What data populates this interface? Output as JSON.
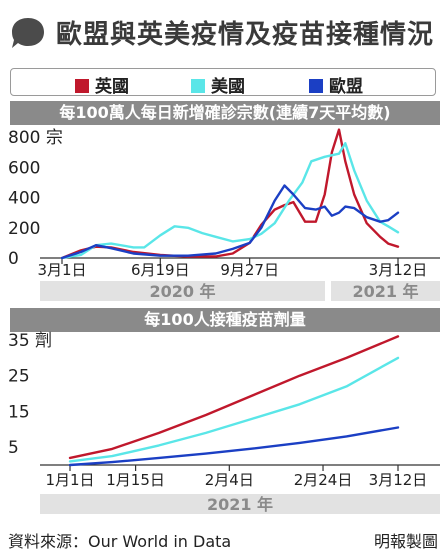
{
  "title": "歐盟與英美疫情及疫苗接種情況",
  "legend": [
    {
      "label": "英國",
      "color": "#c0182c"
    },
    {
      "label": "美國",
      "color": "#5ae6e8"
    },
    {
      "label": "歐盟",
      "color": "#1b3fc4"
    }
  ],
  "source": "資料來源：Our World in Data",
  "credit": "明報製圖",
  "chart_data": [
    {
      "type": "line",
      "title": "每100萬人每日新增確診宗數(連續7天平均數)",
      "y_unit": "宗",
      "ylim": [
        0,
        900
      ],
      "yticks": [
        0,
        200,
        400,
        600,
        800
      ],
      "xticks": [
        "3月1日",
        "6月19日",
        "9月27日",
        "3月12日"
      ],
      "year_bands": [
        "2020 年",
        "2021 年"
      ],
      "grid": false,
      "series": [
        {
          "name": "英國",
          "color": "#c0182c",
          "x": [
            "2020-03-01",
            "2020-03-22",
            "2020-04-08",
            "2020-04-25",
            "2020-05-20",
            "2020-06-19",
            "2020-07-20",
            "2020-08-20",
            "2020-09-08",
            "2020-09-27",
            "2020-10-10",
            "2020-10-25",
            "2020-11-05",
            "2020-11-15",
            "2020-11-28",
            "2020-12-10",
            "2020-12-20",
            "2020-12-28",
            "2021-01-05",
            "2021-01-12",
            "2021-01-22",
            "2021-02-05",
            "2021-02-20",
            "2021-03-01",
            "2021-03-12"
          ],
          "y": [
            0,
            50,
            75,
            70,
            40,
            20,
            10,
            10,
            30,
            100,
            220,
            320,
            350,
            370,
            240,
            240,
            420,
            700,
            850,
            640,
            420,
            230,
            140,
            95,
            75
          ]
        },
        {
          "name": "美國",
          "color": "#5ae6e8",
          "x": [
            "2020-03-01",
            "2020-03-22",
            "2020-04-08",
            "2020-04-25",
            "2020-05-20",
            "2020-06-01",
            "2020-06-19",
            "2020-07-05",
            "2020-07-20",
            "2020-08-05",
            "2020-08-20",
            "2020-09-08",
            "2020-09-27",
            "2020-10-10",
            "2020-10-25",
            "2020-11-10",
            "2020-11-25",
            "2020-12-05",
            "2020-12-20",
            "2021-01-05",
            "2021-01-12",
            "2021-01-22",
            "2021-02-05",
            "2021-02-20",
            "2021-03-01",
            "2021-03-12"
          ],
          "y": [
            0,
            20,
            85,
            95,
            70,
            70,
            150,
            210,
            200,
            165,
            140,
            110,
            125,
            160,
            230,
            380,
            500,
            640,
            670,
            690,
            760,
            580,
            380,
            240,
            210,
            170
          ]
        },
        {
          "name": "歐盟",
          "color": "#1b3fc4",
          "x": [
            "2020-03-01",
            "2020-03-22",
            "2020-04-08",
            "2020-04-25",
            "2020-05-20",
            "2020-06-19",
            "2020-07-20",
            "2020-08-20",
            "2020-09-08",
            "2020-09-27",
            "2020-10-10",
            "2020-10-25",
            "2020-11-05",
            "2020-11-15",
            "2020-11-28",
            "2020-12-10",
            "2020-12-20",
            "2020-12-28",
            "2021-01-05",
            "2021-01-12",
            "2021-01-22",
            "2021-02-05",
            "2021-02-20",
            "2021-03-01",
            "2021-03-12"
          ],
          "y": [
            0,
            40,
            85,
            65,
            30,
            15,
            15,
            30,
            60,
            100,
            200,
            380,
            480,
            420,
            330,
            320,
            340,
            280,
            300,
            340,
            330,
            270,
            240,
            250,
            300
          ]
        }
      ]
    },
    {
      "type": "line",
      "title": "每100人接種疫苗劑量",
      "y_unit": "劑",
      "ylim": [
        0,
        35
      ],
      "yticks": [
        5,
        15,
        25,
        35
      ],
      "xticks": [
        "1月1日",
        "1月15日",
        "2月4日",
        "2月24日",
        "3月12日"
      ],
      "year_bands": [
        "2021 年"
      ],
      "grid": false,
      "series": [
        {
          "name": "英國",
          "color": "#c0182c",
          "x": [
            "2021-01-01",
            "2021-01-10",
            "2021-01-20",
            "2021-01-30",
            "2021-02-09",
            "2021-02-19",
            "2021-03-01",
            "2021-03-12"
          ],
          "y": [
            2,
            4.5,
            9,
            14,
            19.5,
            25,
            30,
            36
          ]
        },
        {
          "name": "美國",
          "color": "#5ae6e8",
          "x": [
            "2021-01-01",
            "2021-01-10",
            "2021-01-20",
            "2021-01-30",
            "2021-02-09",
            "2021-02-19",
            "2021-03-01",
            "2021-03-12"
          ],
          "y": [
            1,
            2.5,
            5.5,
            9,
            13,
            17,
            22,
            30
          ]
        },
        {
          "name": "歐盟",
          "color": "#1b3fc4",
          "x": [
            "2021-01-01",
            "2021-01-10",
            "2021-01-20",
            "2021-01-30",
            "2021-02-09",
            "2021-02-19",
            "2021-03-01",
            "2021-03-12"
          ],
          "y": [
            0,
            0.8,
            2,
            3.2,
            4.6,
            6.2,
            8,
            10.5
          ]
        }
      ]
    }
  ]
}
